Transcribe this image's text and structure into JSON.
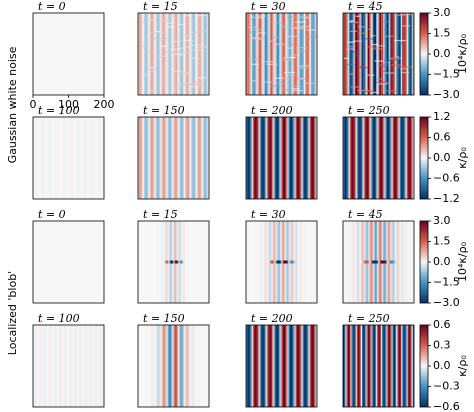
{
  "row_labels": [
    "Gaussian white noise",
    "Localized 'blob'"
  ],
  "xlim": [
    0,
    200
  ],
  "xticks": [
    0,
    100,
    200
  ],
  "rows": [
    {
      "panels": [
        "t = 0",
        "t = 15",
        "t = 30",
        "t = 45"
      ],
      "colorbar": {
        "label": "10⁴κ/ρ₀",
        "lim": [
          -3,
          3
        ],
        "ticks": [
          {
            "value": 3,
            "label": "3.0"
          },
          1.5,
          {
            "value": 0,
            "label": "0.0"
          },
          {
            "value": -1.5,
            "label": "−1.5"
          },
          {
            "value": -3,
            "label": "−3.0"
          }
        ]
      }
    },
    {
      "panels": [
        "t = 100",
        "t = 150",
        "t = 200",
        "t = 250"
      ],
      "colorbar": {
        "label": "κ/ρ₀",
        "lim": [
          -1.2,
          1.2
        ],
        "ticks": [
          1.2,
          0.6,
          {
            "value": 0,
            "label": "0.0"
          },
          {
            "value": -0.6,
            "label": "−0.6"
          },
          {
            "value": -1.2,
            "label": "−1.2"
          }
        ]
      }
    },
    {
      "panels": [
        "t = 0",
        "t = 15",
        "t = 30",
        "t = 45"
      ],
      "colorbar": {
        "label": "10⁴κ/ρ₀",
        "lim": [
          -3,
          3
        ],
        "ticks": [
          {
            "value": 3,
            "label": "3.0"
          },
          1.5,
          {
            "value": 0,
            "label": "0.0"
          },
          {
            "value": -1.5,
            "label": "−1.5"
          },
          {
            "value": -3,
            "label": "−3.0"
          }
        ]
      }
    },
    {
      "panels": [
        "t = 100",
        "t = 150",
        "t = 200",
        "t = 250"
      ],
      "colorbar": {
        "label": "κ/ρ₀",
        "lim": [
          -0.6,
          0.6
        ],
        "ticks": [
          0.6,
          0.3,
          {
            "value": 0,
            "label": "0.0"
          },
          {
            "value": -0.3,
            "label": "−0.3"
          },
          {
            "value": -0.6,
            "label": "−0.6"
          }
        ]
      }
    }
  ]
}
